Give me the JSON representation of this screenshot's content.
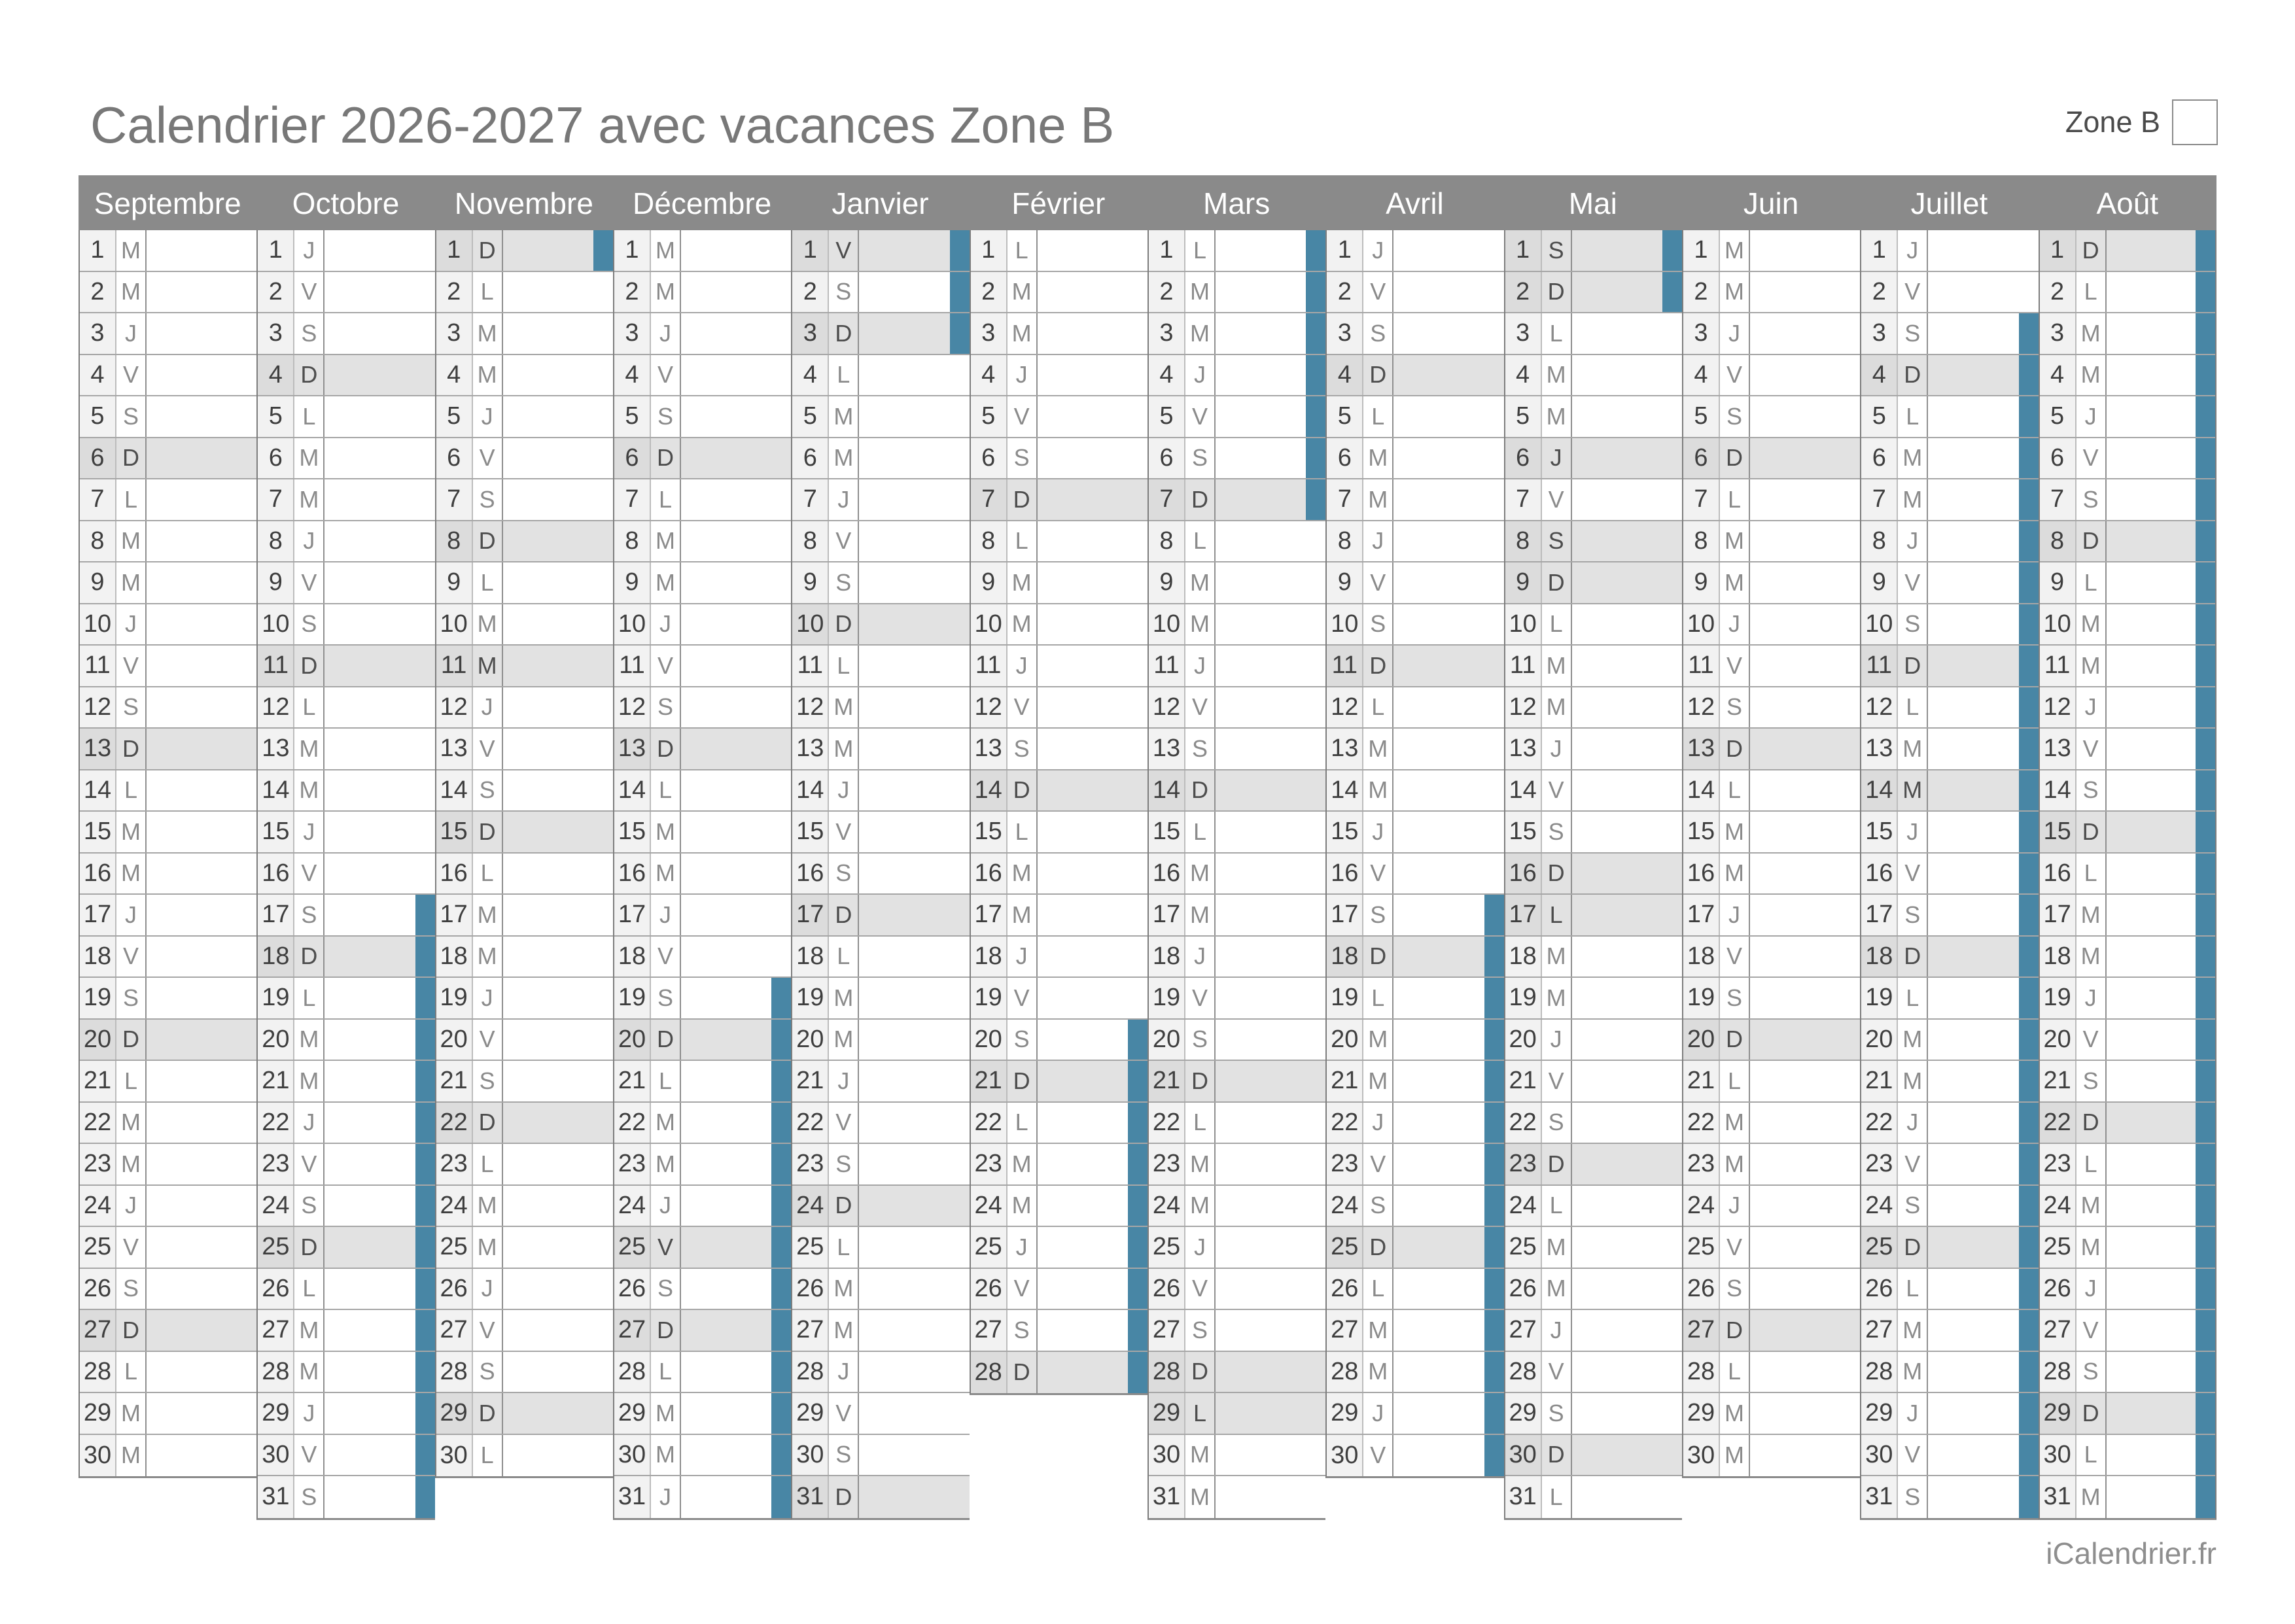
{
  "title": "Calendrier 2026-2027 avec vacances Zone B",
  "legend": {
    "zone_label": "Zone B"
  },
  "watermark": "iCalendrier.fr",
  "colors": {
    "vacation_accent": "#4886a5",
    "header_bg": "#8a8a8a",
    "holiday_row_bg": "#e2e2e2",
    "number_cell_bg": "#f2f2f2"
  },
  "calendar": {
    "months": [
      {
        "name": "Septembre",
        "days": 30,
        "letters": "MMJVSDLMMJVSDLMMJVSDLMMJVSDLMM",
        "gray_days": [
          6,
          13,
          20,
          27
        ],
        "vacation": null
      },
      {
        "name": "Octobre",
        "days": 31,
        "letters": "JVSDLMMJVSDLMMJVSDLMMJVSDLMMJVS",
        "gray_days": [
          4,
          11,
          18,
          25
        ],
        "vacation": [
          17,
          31
        ]
      },
      {
        "name": "Novembre",
        "days": 30,
        "letters": "DLMMJVSDLMMJVSDLMMJVSDLMMJVSDL",
        "gray_days": [
          1,
          8,
          11,
          15,
          22,
          29
        ],
        "vacation": [
          1,
          1
        ]
      },
      {
        "name": "Décembre",
        "days": 31,
        "letters": "MMJVSDLMMJVSDLMMJVSDLMMJVSDLMMJ",
        "gray_days": [
          6,
          13,
          20,
          25,
          27
        ],
        "vacation": [
          19,
          31
        ]
      },
      {
        "name": "Janvier",
        "days": 31,
        "letters": "VSDLMMJVSDLMMJVSDLMMJVSDLMMJVSD",
        "gray_days": [
          1,
          3,
          10,
          17,
          24,
          31
        ],
        "vacation": [
          1,
          3
        ]
      },
      {
        "name": "Février",
        "days": 28,
        "letters": "LMMJVSDLMMJVSDLMMJVSDLMMJVSD",
        "gray_days": [
          7,
          14,
          21,
          28
        ],
        "vacation": [
          20,
          28
        ]
      },
      {
        "name": "Mars",
        "days": 31,
        "letters": "LMMJVSDLMMJVSDLMMJVSDLMMJVSDLMM",
        "gray_days": [
          7,
          14,
          21,
          28,
          29
        ],
        "vacation": [
          1,
          7
        ]
      },
      {
        "name": "Avril",
        "days": 30,
        "letters": "JVSDLMMJVSDLMMJVSDLMMJVSDLMMJV",
        "gray_days": [
          4,
          11,
          18,
          25
        ],
        "vacation": [
          17,
          30
        ]
      },
      {
        "name": "Mai",
        "days": 31,
        "letters": "SDLMMJVSDLMMJVSDLMMJVSDLMMJVSDL",
        "gray_days": [
          1,
          2,
          6,
          8,
          9,
          16,
          17,
          23,
          30
        ],
        "vacation": [
          1,
          2
        ]
      },
      {
        "name": "Juin",
        "days": 30,
        "letters": "MMJVSDLMMJVSDLMMJVSDLMMJVSDLMM",
        "gray_days": [
          6,
          13,
          20,
          27
        ],
        "vacation": null
      },
      {
        "name": "Juillet",
        "days": 31,
        "letters": "JVSDLMMJVSDLMMJVSDLMMJVSDLMMJVS",
        "gray_days": [
          4,
          11,
          14,
          18,
          25
        ],
        "vacation": [
          3,
          31
        ]
      },
      {
        "name": "Août",
        "days": 31,
        "letters": "DLMMJVSDLMMJVSDLMMJVSDLMMJVSDLM",
        "gray_days": [
          1,
          8,
          15,
          22,
          29
        ],
        "vacation": [
          1,
          31
        ]
      }
    ]
  }
}
